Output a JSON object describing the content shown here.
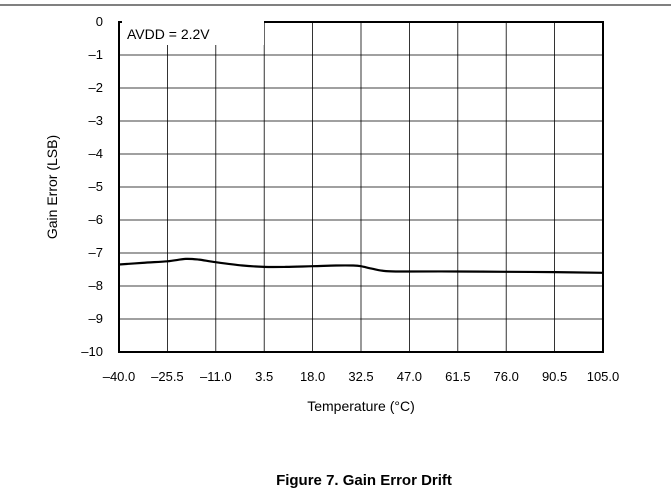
{
  "chart_data": {
    "type": "line",
    "caption": "Figure 7. Gain Error Drift",
    "xlabel": "Temperature (°C)",
    "ylabel": "Gain Error (LSB)",
    "annotation": "AVDD = 2.2V",
    "x_ticks": [
      -40.0,
      -25.5,
      -11.0,
      3.5,
      18.0,
      32.5,
      47.0,
      61.5,
      76.0,
      90.5,
      105.0
    ],
    "x_tick_labels": [
      "–40.0",
      "–25.5",
      "–11.0",
      "3.5",
      "18.0",
      "32.5",
      "47.0",
      "61.5",
      "76.0",
      "90.5",
      "105.0"
    ],
    "y_ticks": [
      0,
      -1,
      -2,
      -3,
      -4,
      -5,
      -6,
      -7,
      -8,
      -9,
      -10
    ],
    "y_tick_labels": [
      "0",
      "–1",
      "–2",
      "–3",
      "–4",
      "–5",
      "–6",
      "–7",
      "–8",
      "–9",
      "–10"
    ],
    "xlim": [
      -40.0,
      105.0
    ],
    "ylim": [
      -10,
      0
    ],
    "grid": true,
    "series": [
      {
        "x": [
          -40.0,
          -33.0,
          -25.5,
          -20.0,
          -16.0,
          -11.0,
          -3.0,
          3.5,
          10.0,
          18.0,
          25.0,
          30.0,
          32.5,
          36.0,
          40.0,
          47.0,
          61.5,
          76.0,
          90.5,
          105.0
        ],
        "y": [
          -7.35,
          -7.3,
          -7.25,
          -7.18,
          -7.2,
          -7.28,
          -7.38,
          -7.42,
          -7.42,
          -7.4,
          -7.38,
          -7.38,
          -7.4,
          -7.48,
          -7.55,
          -7.56,
          -7.56,
          -7.57,
          -7.58,
          -7.6
        ],
        "color": "#000000"
      }
    ]
  }
}
